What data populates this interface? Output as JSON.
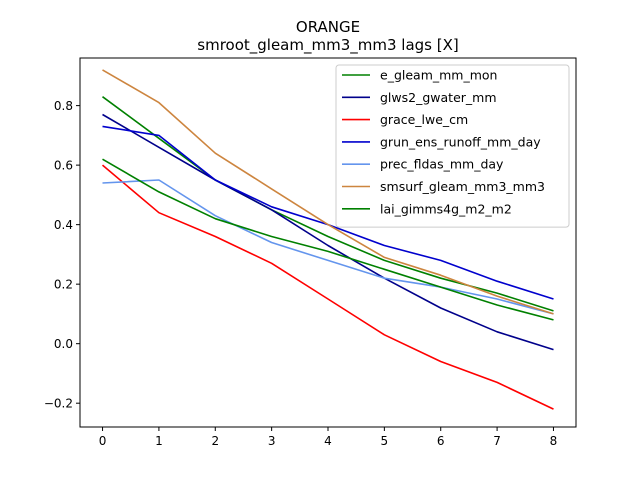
{
  "chart_data": {
    "type": "line",
    "title": "ORANGE",
    "subtitle": "smroot_gleam_mm3_mm3 lags [X]",
    "xlabel": "",
    "ylabel": "",
    "x": [
      0,
      1,
      2,
      3,
      4,
      5,
      6,
      7,
      8
    ],
    "xlim": [
      -0.4,
      8.4
    ],
    "ylim": [
      -0.28,
      0.96
    ],
    "xticks": [
      "0",
      "1",
      "2",
      "3",
      "4",
      "5",
      "6",
      "7",
      "8"
    ],
    "yticks": [
      -0.2,
      0.0,
      0.2,
      0.4,
      0.6,
      0.8
    ],
    "ytick_labels": [
      "−0.2",
      "0.0",
      "0.2",
      "0.4",
      "0.6",
      "0.8"
    ],
    "grid": false,
    "legend_position": "top-right",
    "series": [
      {
        "name": "e_gleam_mm_mon",
        "color": "#008000",
        "values": [
          0.83,
          0.69,
          0.55,
          0.45,
          0.36,
          0.28,
          0.22,
          0.17,
          0.11
        ]
      },
      {
        "name": "glws2_gwater_mm",
        "color": "#00008b",
        "values": [
          0.77,
          0.66,
          0.55,
          0.45,
          0.33,
          0.22,
          0.12,
          0.04,
          -0.02
        ]
      },
      {
        "name": "grace_lwe_cm",
        "color": "#ff0000",
        "values": [
          0.6,
          0.44,
          0.36,
          0.27,
          0.15,
          0.03,
          -0.06,
          -0.13,
          -0.22
        ]
      },
      {
        "name": "grun_ens_runoff_mm_day",
        "color": "#0000cd",
        "values": [
          0.73,
          0.7,
          0.55,
          0.46,
          0.4,
          0.33,
          0.28,
          0.21,
          0.15
        ]
      },
      {
        "name": "prec_fldas_mm_day",
        "color": "#6495ed",
        "values": [
          0.54,
          0.55,
          0.43,
          0.34,
          0.28,
          0.22,
          0.19,
          0.15,
          0.1
        ]
      },
      {
        "name": "smsurf_gleam_mm3_mm3",
        "color": "#cd853f",
        "values": [
          0.92,
          0.81,
          0.64,
          0.52,
          0.4,
          0.29,
          0.23,
          0.16,
          0.1
        ]
      },
      {
        "name": "lai_gimms4g_m2_m2",
        "color": "#008000",
        "values": [
          0.62,
          0.51,
          0.42,
          0.36,
          0.31,
          0.25,
          0.19,
          0.13,
          0.08
        ]
      }
    ]
  }
}
